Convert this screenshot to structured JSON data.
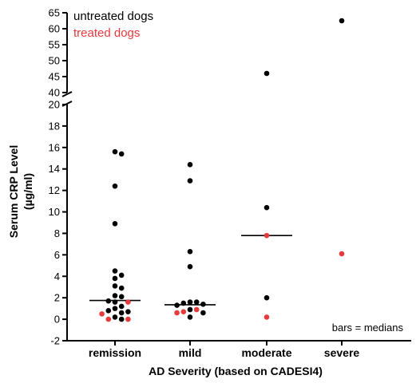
{
  "chart_data": {
    "type": "scatter",
    "xlabel": "AD Severity (based on CADESI4)",
    "ylabel_lines": [
      "Serum CRP Level",
      "(µg/ml)"
    ],
    "categories": [
      "remission",
      "mild",
      "moderate",
      "severe"
    ],
    "y_axis_lower": {
      "range": [
        -2,
        20
      ],
      "ticks": [
        -2,
        0,
        2,
        4,
        6,
        8,
        10,
        12,
        14,
        16,
        18,
        20
      ]
    },
    "y_axis_upper": {
      "range": [
        40,
        65
      ],
      "ticks": [
        40,
        45,
        50,
        55,
        60,
        65
      ]
    },
    "y_axis_break": true,
    "grid": false,
    "legend_position": "top-left",
    "annotation": "bars = medians",
    "series": [
      {
        "name": "untreated dogs",
        "color": "#000000",
        "points": [
          [
            "remission",
            15.6
          ],
          [
            "remission",
            15.4
          ],
          [
            "remission",
            12.4
          ],
          [
            "remission",
            8.9
          ],
          [
            "remission",
            4.5
          ],
          [
            "remission",
            4.1
          ],
          [
            "remission",
            3.8
          ],
          [
            "remission",
            3.1
          ],
          [
            "remission",
            2.9
          ],
          [
            "remission",
            2.2
          ],
          [
            "remission",
            2.1
          ],
          [
            "remission",
            1.6
          ],
          [
            "remission",
            1.7
          ],
          [
            "remission",
            1.2
          ],
          [
            "remission",
            1.0
          ],
          [
            "remission",
            0.8
          ],
          [
            "remission",
            0.7
          ],
          [
            "remission",
            0.6
          ],
          [
            "remission",
            0.2
          ],
          [
            "remission",
            0.0
          ],
          [
            "mild",
            14.4
          ],
          [
            "mild",
            12.9
          ],
          [
            "mild",
            6.3
          ],
          [
            "mild",
            4.9
          ],
          [
            "mild",
            1.6
          ],
          [
            "mild",
            1.6
          ],
          [
            "mild",
            1.5
          ],
          [
            "mild",
            1.4
          ],
          [
            "mild",
            1.3
          ],
          [
            "mild",
            0.9
          ],
          [
            "mild",
            0.6
          ],
          [
            "mild",
            0.2
          ],
          [
            "moderate",
            46.0
          ],
          [
            "moderate",
            10.4
          ],
          [
            "moderate",
            2.0
          ],
          [
            "severe",
            62.5
          ]
        ]
      },
      {
        "name": "treated dogs",
        "color": "#e8393b",
        "points": [
          [
            "remission",
            1.6
          ],
          [
            "remission",
            0.5
          ],
          [
            "remission",
            0.0
          ],
          [
            "remission",
            0.0
          ],
          [
            "mild",
            0.9
          ],
          [
            "mild",
            0.7
          ],
          [
            "mild",
            0.6
          ],
          [
            "moderate",
            7.8
          ],
          [
            "moderate",
            0.2
          ],
          [
            "severe",
            6.1
          ]
        ]
      }
    ],
    "medians": [
      {
        "category": "remission",
        "value": 1.75
      },
      {
        "category": "mild",
        "value": 1.35
      },
      {
        "category": "moderate",
        "value": 7.8
      }
    ]
  }
}
